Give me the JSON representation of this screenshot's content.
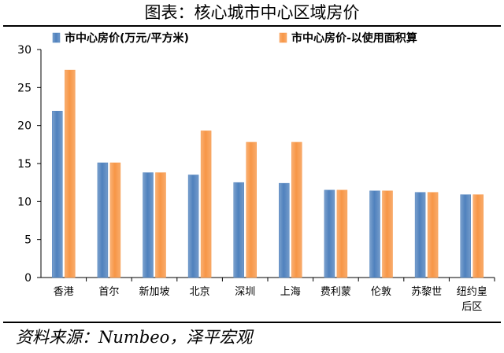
{
  "title": "图表：核心城市中心区域房价",
  "source": "资料来源：Numbeo，泽平宏观",
  "colors": {
    "series1": "#4F81BD",
    "series2": "#F79646"
  },
  "chart_data": {
    "type": "bar",
    "title": "图表：核心城市中心区域房价",
    "xlabel": "",
    "ylabel": "",
    "ylim": [
      0,
      30
    ],
    "yticks": [
      0,
      5,
      10,
      15,
      20,
      25,
      30
    ],
    "grid": false,
    "legend": "top-left",
    "categories": [
      [
        "香港"
      ],
      [
        "首尔"
      ],
      [
        "新加坡"
      ],
      [
        "北京"
      ],
      [
        "深圳"
      ],
      [
        "上海"
      ],
      [
        "费利蒙"
      ],
      [
        "伦敦"
      ],
      [
        "苏黎世"
      ],
      [
        "纽约皇",
        "后区"
      ]
    ],
    "series": [
      {
        "name": "市中心房价(万元/平方米)",
        "values": [
          21.9,
          15.1,
          13.8,
          13.5,
          12.5,
          12.4,
          11.5,
          11.4,
          11.2,
          10.9
        ]
      },
      {
        "name": "市中心房价-以使用面积算",
        "values": [
          27.3,
          15.1,
          13.8,
          19.3,
          17.8,
          17.8,
          11.5,
          11.4,
          11.2,
          10.9
        ]
      }
    ]
  }
}
